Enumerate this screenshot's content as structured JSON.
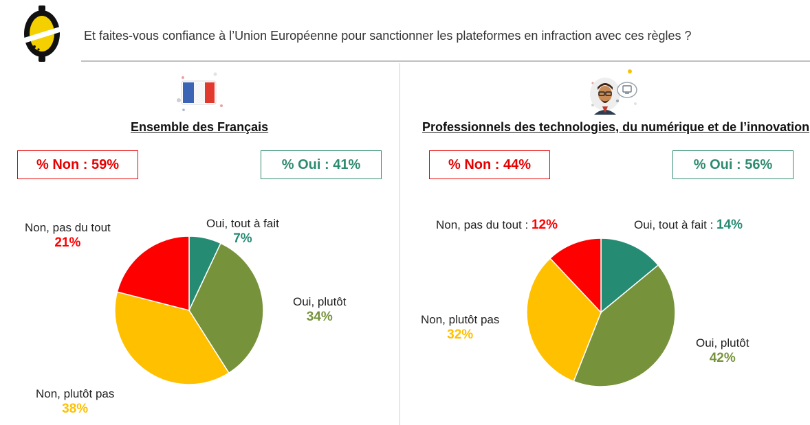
{
  "header": {
    "question": "Et faites-vous confiance à l’Union Européenne pour sanctionner les plateformes en infraction avec ces règles ?",
    "logo_icon": "lemon-logo-icon"
  },
  "colors": {
    "non_pas_du_tout": "#ff0000",
    "non_plutot_pas": "#ffc000",
    "oui_plutot": "#76933c",
    "oui_tout_a_fait": "#268b73",
    "box_non": "#e60000",
    "box_oui": "#2e8b6f"
  },
  "panels": [
    {
      "icon": "french-flag-icon",
      "title": "Ensemble des Français",
      "summary_non": "% Non : 59%",
      "summary_oui": "% Oui : 41%"
    },
    {
      "icon": "tech-professional-icon",
      "title": "Professionnels des technologies, du numérique et de l’innovation",
      "summary_non": "% Non : 44%",
      "summary_oui": "% Oui : 56%"
    }
  ],
  "chart_data": [
    {
      "type": "pie",
      "categories": [
        "Oui, tout à fait",
        "Oui, plutôt",
        "Non, plutôt pas",
        "Non, pas du tout"
      ],
      "values": [
        7,
        34,
        38,
        21
      ],
      "value_labels": [
        "7%",
        "34%",
        "38%",
        "21%"
      ]
    },
    {
      "type": "pie",
      "categories": [
        "Oui, tout à fait",
        "Oui, plutôt",
        "Non, plutôt pas",
        "Non, pas du tout"
      ],
      "values": [
        14,
        42,
        32,
        12
      ],
      "value_labels": [
        "14%",
        "42%",
        "32%",
        "12%"
      ]
    }
  ]
}
